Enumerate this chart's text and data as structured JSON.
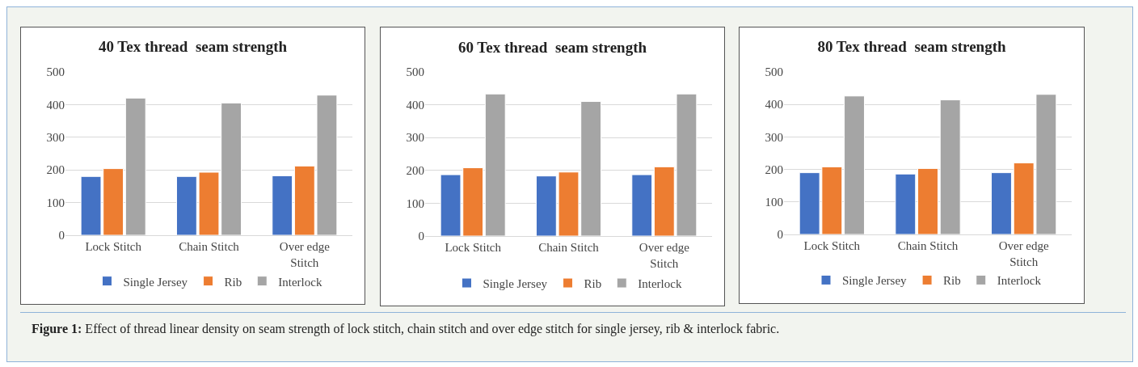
{
  "chart_data": [
    {
      "type": "bar",
      "title": "40 Tex thread  seam strength",
      "categories": [
        "Lock Stitch",
        "Chain Stitch",
        "Over edge Stitch"
      ],
      "series": [
        {
          "name": "Single Jersey",
          "color": "#4472c4",
          "values": [
            180,
            180,
            182
          ]
        },
        {
          "name": "Rib",
          "color": "#ed7d31",
          "values": [
            204,
            193,
            212
          ]
        },
        {
          "name": "Interlock",
          "color": "#a5a5a5",
          "values": [
            420,
            405,
            429
          ]
        }
      ],
      "ylim": [
        0,
        500
      ],
      "yticks": [
        0,
        100,
        200,
        300,
        400,
        500
      ],
      "grid": "y",
      "legend": "bottom",
      "annotations": [
        "Figure 1: Effect of thread linear density on seam strength of lock stitch, chain stitch and over edge stitch for single jersey, rib & interlock fabric."
      ]
    },
    {
      "type": "bar",
      "title": "60 Tex thread  seam strength",
      "categories": [
        "Lock Stitch",
        "Chain Stitch",
        "Over edge Stitch"
      ],
      "series": [
        {
          "name": "Single Jersey",
          "color": "#4472c4",
          "values": [
            187,
            183,
            187
          ]
        },
        {
          "name": "Rib",
          "color": "#ed7d31",
          "values": [
            208,
            195,
            211
          ]
        },
        {
          "name": "Interlock",
          "color": "#a5a5a5",
          "values": [
            433,
            410,
            433
          ]
        }
      ],
      "ylim": [
        0,
        500
      ],
      "yticks": [
        0,
        100,
        200,
        300,
        400,
        500
      ],
      "grid": "y",
      "legend": "bottom"
    },
    {
      "type": "bar",
      "title": "80 Tex thread  seam strength",
      "categories": [
        "Lock Stitch",
        "Chain Stitch",
        "Over edge Stitch"
      ],
      "series": [
        {
          "name": "Single Jersey",
          "color": "#4472c4",
          "values": [
            190,
            186,
            190
          ]
        },
        {
          "name": "Rib",
          "color": "#ed7d31",
          "values": [
            208,
            203,
            220
          ]
        },
        {
          "name": "Interlock",
          "color": "#a5a5a5",
          "values": [
            426,
            414,
            431
          ]
        }
      ],
      "ylim": [
        0,
        500
      ],
      "yticks": [
        0,
        100,
        200,
        300,
        400,
        500
      ],
      "grid": "y",
      "legend": "bottom"
    }
  ]
}
